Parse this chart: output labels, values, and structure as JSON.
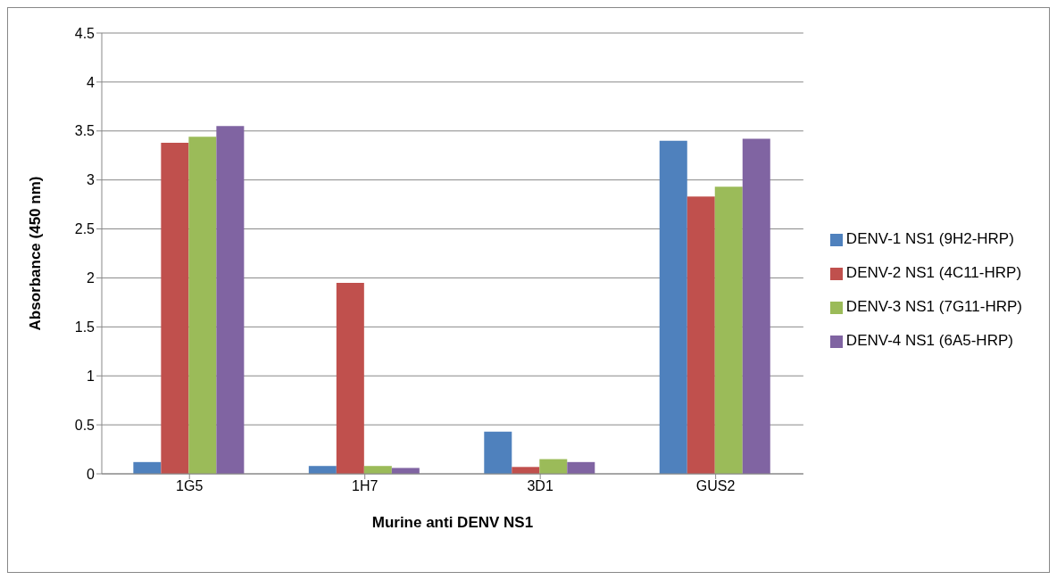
{
  "chart_data": {
    "type": "bar",
    "xlabel": "Murine anti DENV NS1",
    "ylabel": "Absorbance (450 nm)",
    "categories": [
      "1G5",
      "1H7",
      "3D1",
      "GUS2"
    ],
    "series": [
      {
        "name": "DENV-1 NS1 (9H2-HRP)",
        "color": "#4f81bd",
        "values": [
          0.12,
          0.08,
          0.43,
          3.4
        ]
      },
      {
        "name": "DENV-2 NS1 (4C11-HRP)",
        "color": "#c0504d",
        "values": [
          3.38,
          1.95,
          0.07,
          2.83
        ]
      },
      {
        "name": "DENV-3 NS1 (7G11-HRP)",
        "color": "#9bbb59",
        "values": [
          3.44,
          0.08,
          0.15,
          2.93
        ]
      },
      {
        "name": "DENV-4 NS1 (6A5-HRP)",
        "color": "#8064a2",
        "values": [
          3.55,
          0.06,
          0.12,
          3.42
        ]
      }
    ],
    "ylim": [
      0,
      4.5
    ],
    "yticks": [
      0,
      0.5,
      1,
      1.5,
      2,
      2.5,
      3,
      3.5,
      4,
      4.5
    ],
    "grid": "y",
    "legend": "right"
  }
}
